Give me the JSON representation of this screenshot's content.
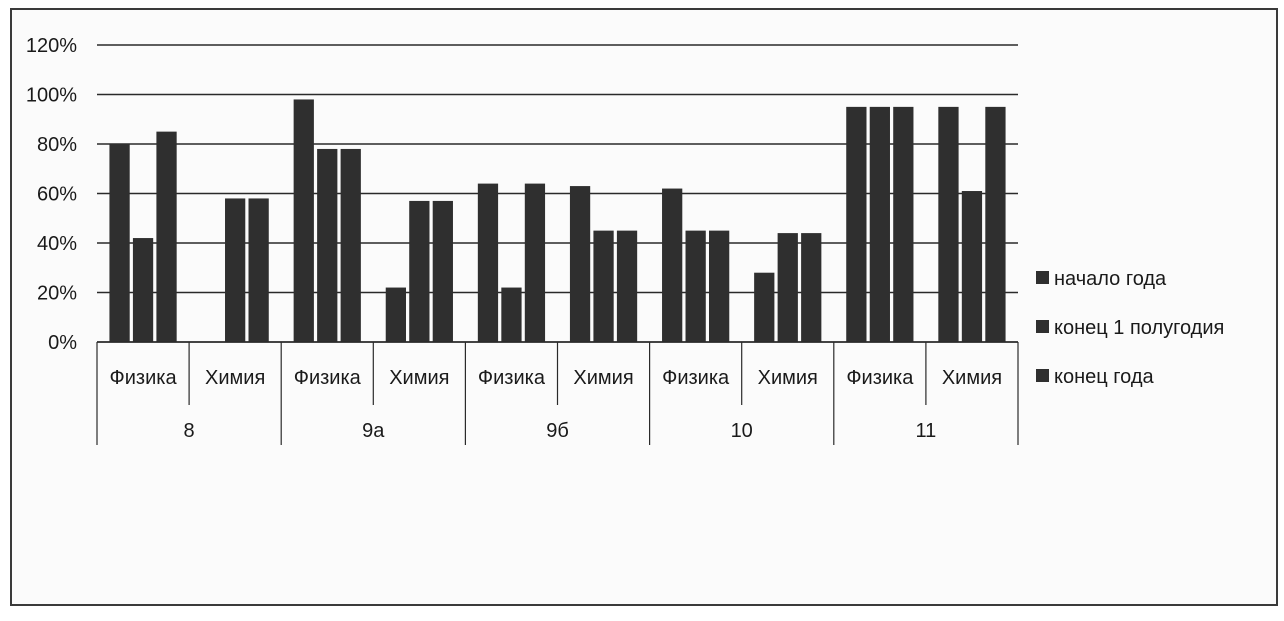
{
  "chart_data": {
    "type": "bar",
    "groups": [
      "8",
      "9а",
      "9б",
      "10",
      "11"
    ],
    "subcategories": [
      "Физика",
      "Химия"
    ],
    "y_ticks": [
      "0%",
      "20%",
      "40%",
      "60%",
      "80%",
      "100%",
      "120%"
    ],
    "ylim": [
      0,
      120
    ],
    "grid": true,
    "legend_position": "right",
    "series": [
      {
        "name": "начало года",
        "values": [
          80,
          0,
          98,
          22,
          64,
          63,
          62,
          28,
          95,
          95
        ]
      },
      {
        "name": "конец 1 полугодия",
        "values": [
          42,
          58,
          78,
          57,
          22,
          45,
          45,
          44,
          95,
          61
        ]
      },
      {
        "name": "конец года",
        "values": [
          85,
          58,
          78,
          57,
          64,
          45,
          45,
          44,
          95,
          95
        ]
      }
    ],
    "colors": {
      "bar": "#2f2f2f",
      "grid": "#2a2a2a",
      "axis": "#2a2a2a"
    }
  }
}
